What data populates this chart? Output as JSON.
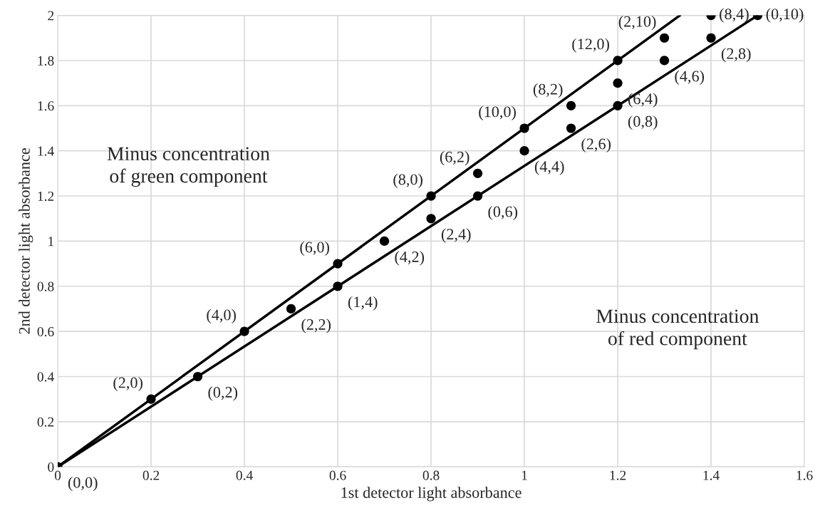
{
  "chart_data": {
    "type": "scatter",
    "xlabel": "1st detector light absorbance",
    "ylabel": "2nd detector light absorbance",
    "xlim": [
      0,
      1.6
    ],
    "ylim": [
      0,
      2
    ],
    "xticks": [
      0,
      0.2,
      0.4,
      0.6,
      0.8,
      1,
      1.2,
      1.4,
      1.6
    ],
    "yticks": [
      0,
      0.2,
      0.4,
      0.6,
      0.8,
      1,
      1.2,
      1.4,
      1.6,
      1.8,
      2
    ],
    "grid": true,
    "series": [
      {
        "marker": "circle",
        "color": "#000000",
        "x": [
          0,
          0.2,
          0.3,
          0.4,
          0.5,
          0.6,
          0.6,
          0.7,
          0.8,
          0.8,
          0.9,
          0.9,
          1.0,
          1.0,
          1.1,
          1.1,
          1.2,
          1.2,
          1.2,
          1.3,
          1.3,
          1.4,
          1.4,
          1.5
        ],
        "values": [
          0,
          0.3,
          0.4,
          0.6,
          0.7,
          0.9,
          0.8,
          1.0,
          1.2,
          1.1,
          1.3,
          1.2,
          1.5,
          1.4,
          1.6,
          1.5,
          1.8,
          1.7,
          1.6,
          1.9,
          1.8,
          2.0,
          1.9,
          2.0
        ]
      },
      {
        "type": "line",
        "marker": "none",
        "color": "#000000",
        "x": [
          0,
          1.3333
        ],
        "values": [
          0,
          2
        ]
      },
      {
        "type": "line",
        "marker": "none",
        "color": "#000000",
        "x": [
          0,
          1.5
        ],
        "values": [
          0,
          2
        ]
      }
    ],
    "annotations": [
      {
        "text": "(0,0)",
        "x": 0,
        "y": 0
      },
      {
        "text": "(2,0)",
        "x": 0.2,
        "y": 0.3
      },
      {
        "text": "(0,2)",
        "x": 0.3,
        "y": 0.4
      },
      {
        "text": "(4,0)",
        "x": 0.4,
        "y": 0.6
      },
      {
        "text": "(2,2)",
        "x": 0.5,
        "y": 0.7
      },
      {
        "text": "(6,0)",
        "x": 0.6,
        "y": 0.9
      },
      {
        "text": "(1,4)",
        "x": 0.6,
        "y": 0.8
      },
      {
        "text": "(4,2)",
        "x": 0.7,
        "y": 1.0
      },
      {
        "text": "(8,0)",
        "x": 0.8,
        "y": 1.2
      },
      {
        "text": "(2,4)",
        "x": 0.8,
        "y": 1.1
      },
      {
        "text": "(6,2)",
        "x": 0.9,
        "y": 1.3
      },
      {
        "text": "(0,6)",
        "x": 0.9,
        "y": 1.2
      },
      {
        "text": "(10,0)",
        "x": 1.0,
        "y": 1.5
      },
      {
        "text": "(4,4)",
        "x": 1.0,
        "y": 1.4
      },
      {
        "text": "(8,2)",
        "x": 1.1,
        "y": 1.6
      },
      {
        "text": "(2,6)",
        "x": 1.1,
        "y": 1.5
      },
      {
        "text": "(12,0)",
        "x": 1.2,
        "y": 1.8
      },
      {
        "text": "(6,4)",
        "x": 1.2,
        "y": 1.7
      },
      {
        "text": "(0,8)",
        "x": 1.2,
        "y": 1.6
      },
      {
        "text": "(2,10)",
        "x": 1.3,
        "y": 1.9
      },
      {
        "text": "(4,6)",
        "x": 1.3,
        "y": 1.8
      },
      {
        "text": "(8,4)",
        "x": 1.4,
        "y": 2.0
      },
      {
        "text": "(2,8)",
        "x": 1.4,
        "y": 1.9
      },
      {
        "text": "(0,10)",
        "x": 1.5,
        "y": 2.0
      },
      "Minus concentration\nof green component",
      "Minus concentration\nof red component"
    ]
  }
}
